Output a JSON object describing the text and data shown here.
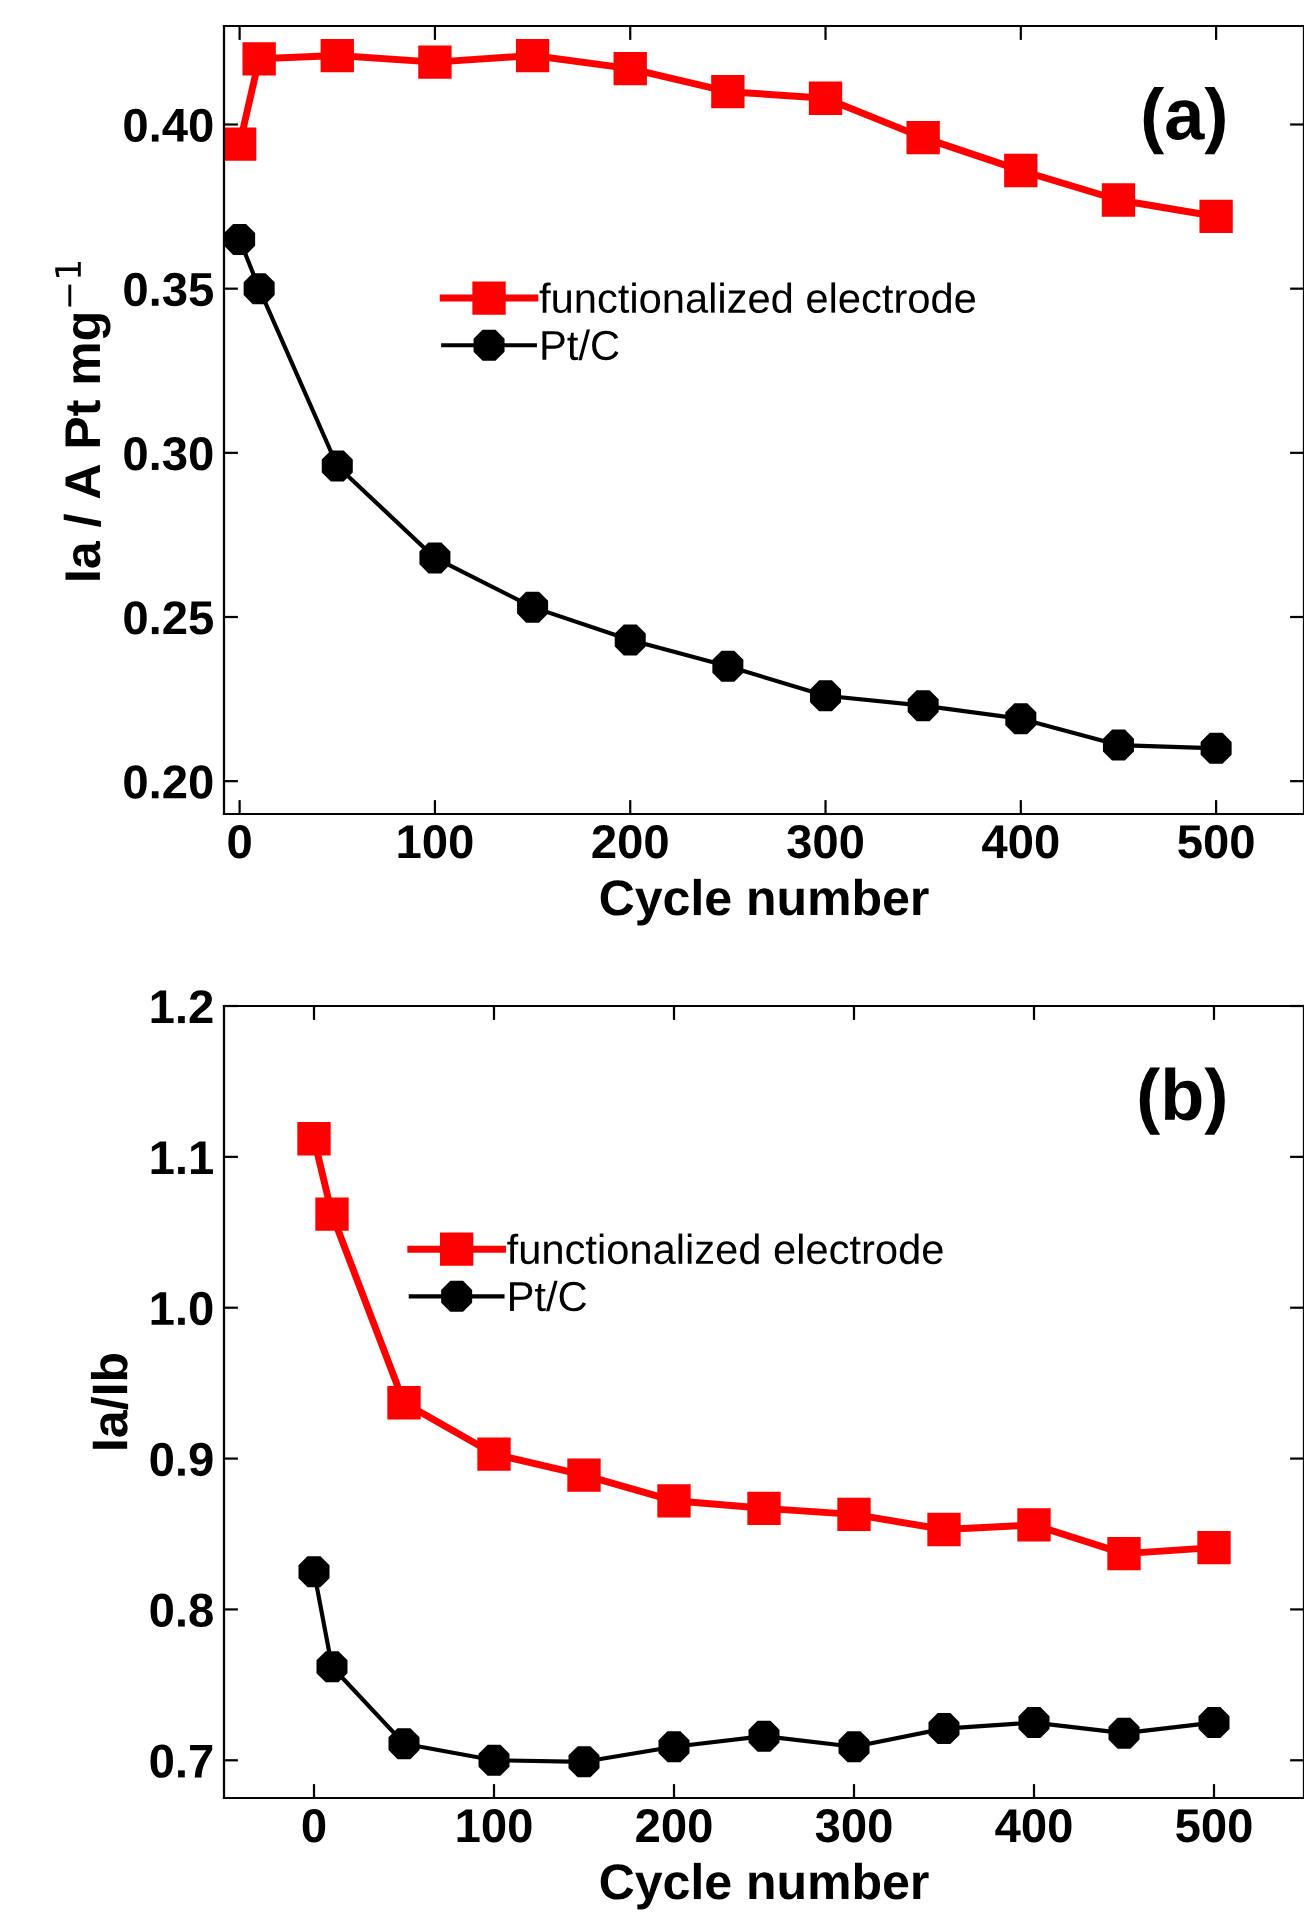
{
  "chart_data": [
    {
      "type": "line",
      "xlabel": "Cycle number",
      "ylabel": "Ia / A Pt mg$^{−1}$",
      "annotations": [
        "(a)"
      ],
      "x": [
        0,
        10,
        50,
        100,
        150,
        200,
        250,
        300,
        350,
        400,
        450,
        500
      ],
      "series": [
        {
          "name": "functionalized electrode",
          "color": "#ff0000",
          "marker": "square",
          "values": [
            0.394,
            0.42,
            0.421,
            0.419,
            0.421,
            0.417,
            0.41,
            0.408,
            0.396,
            0.386,
            0.377,
            0.372
          ]
        },
        {
          "name": "Pt/C",
          "color": "#000000",
          "marker": "circle",
          "values": [
            0.365,
            0.35,
            0.296,
            0.268,
            0.253,
            0.243,
            0.235,
            0.226,
            0.223,
            0.219,
            0.211,
            0.21
          ]
        }
      ],
      "xlim": [
        -8,
        545
      ],
      "xticks": [
        0,
        100,
        200,
        300,
        400,
        500
      ],
      "ylim": [
        0.19,
        0.43
      ],
      "yticks": [
        {
          "value": 0.2,
          "label": "0.20"
        },
        {
          "value": 0.25,
          "label": "0.25"
        },
        {
          "value": 0.3,
          "label": "0.30"
        },
        {
          "value": 0.35,
          "label": "0.35"
        },
        {
          "value": 0.4,
          "label": "0.40"
        }
      ],
      "legend": "center",
      "grid": false,
      "line_style": "solid"
    },
    {
      "type": "line",
      "xlabel": "Cycle number",
      "ylabel": "Ia/Ib",
      "annotations": [
        "(b)"
      ],
      "x": [
        0,
        10,
        50,
        100,
        150,
        200,
        250,
        300,
        350,
        400,
        450,
        500
      ],
      "series": [
        {
          "name": "functionalized electrode",
          "color": "#ff0000",
          "marker": "square",
          "values": [
            1.112,
            1.062,
            0.937,
            0.903,
            0.889,
            0.872,
            0.867,
            0.863,
            0.853,
            0.856,
            0.837,
            0.841
          ]
        },
        {
          "name": "Pt/C",
          "color": "#000000",
          "marker": "circle",
          "values": [
            0.825,
            0.762,
            0.711,
            0.7,
            0.699,
            0.709,
            0.716,
            0.709,
            0.721,
            0.725,
            0.718,
            0.725
          ]
        }
      ],
      "xlim": [
        -50,
        550
      ],
      "xticks": [
        0,
        100,
        200,
        300,
        400,
        500
      ],
      "ylim": [
        0.675,
        1.2
      ],
      "yticks": [
        {
          "value": 0.7,
          "label": "0.7"
        },
        {
          "value": 0.8,
          "label": "0.8"
        },
        {
          "value": 0.9,
          "label": "0.9"
        },
        {
          "value": 1.0,
          "label": "1.0"
        },
        {
          "value": 1.1,
          "label": "1.1"
        },
        {
          "value": 1.2,
          "label": "1.2"
        }
      ],
      "legend": "top",
      "grid": false,
      "line_style": "solid"
    }
  ]
}
